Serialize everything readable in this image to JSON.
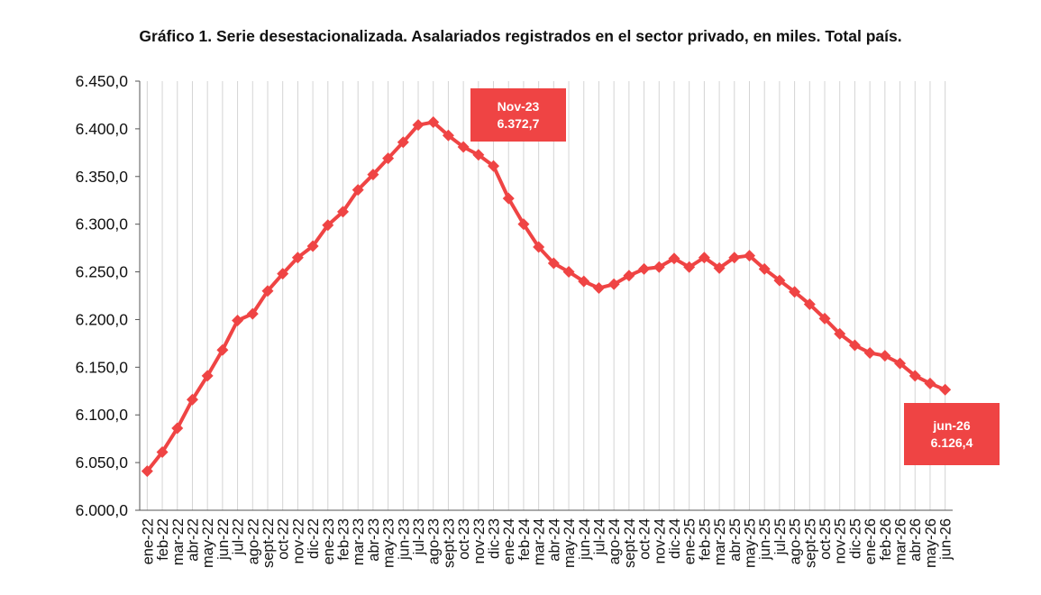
{
  "chart_data": {
    "type": "line",
    "title": "Gráfico 1. Serie desestacionalizada. Asalariados registrados en el sector privado, en miles. Total país.",
    "xlabel": "",
    "ylabel": "",
    "ylim": [
      6000,
      6450
    ],
    "yticks": [
      "6.000,0",
      "6.050,0",
      "6.100,0",
      "6.150,0",
      "6.200,0",
      "6.250,0",
      "6.300,0",
      "6.350,0",
      "6.400,0",
      "6.450,0"
    ],
    "grid": "vertical",
    "series_color": "#ef4444",
    "categories": [
      "ene-22",
      "feb-22",
      "mar-22",
      "abr-22",
      "may-22",
      "jun-22",
      "jul-22",
      "ago-22",
      "sept-22",
      "oct-22",
      "nov-22",
      "dic-22",
      "ene-23",
      "feb-23",
      "mar-23",
      "abr-23",
      "may-23",
      "jun-23",
      "jul-23",
      "ago-23",
      "sept-23",
      "oct-23",
      "nov-23",
      "dic-23",
      "ene-24",
      "feb-24",
      "mar-24",
      "abr-24",
      "may-24",
      "jun-24",
      "jul-24",
      "ago-24",
      "sept-24",
      "oct-24",
      "nov-24",
      "dic-24",
      "ene-25",
      "feb-25",
      "mar-25",
      "abr-25",
      "may-25",
      "jun-25",
      "jul-25",
      "ago-25",
      "sept-25",
      "oct-25",
      "nov-25",
      "dic-25",
      "ene-26",
      "feb-26",
      "mar-26",
      "abr-26",
      "may-26",
      "jun-26"
    ],
    "series": [
      {
        "values": [
          6041,
          6061,
          6086,
          6116,
          6141,
          6168,
          6199,
          6206,
          6230,
          6248,
          6265,
          6277,
          6299,
          6313,
          6336,
          6352,
          6369,
          6386,
          6404,
          6407,
          6393,
          6381,
          6372.7,
          6361,
          6327,
          6300,
          6276,
          6259,
          6250,
          6240,
          6233,
          6237,
          6246,
          6253,
          6255,
          6264,
          6255,
          6265,
          6254,
          6265,
          6267,
          6253,
          6241,
          6229,
          6216,
          6201,
          6185,
          6173,
          6165,
          6162,
          6154,
          6141,
          6133,
          6126.4
        ]
      }
    ],
    "annotations": [
      {
        "id": "peak",
        "category": "nov-23",
        "line1": "Nov-23",
        "line2": "6.372,7"
      },
      {
        "id": "last",
        "category": "jun-26",
        "line1": "jun-26",
        "line2": "6.126,4"
      }
    ]
  }
}
